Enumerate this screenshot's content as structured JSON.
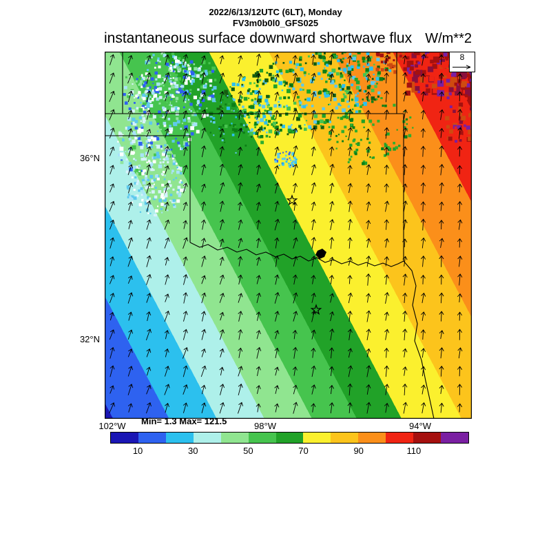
{
  "header": {
    "run_line": "2022/6/13/12UTC (6LT), Monday",
    "model_line": "FV3m0b0l0_GFS025",
    "title": "instantaneous surface downward shortwave flux",
    "units": "W/m**2"
  },
  "axes": {
    "lat_labels": [
      {
        "text": "36°N"
      },
      {
        "text": "32°N"
      }
    ],
    "lon_labels": [
      {
        "text": "102°W"
      },
      {
        "text": "98°W"
      },
      {
        "text": "94°W"
      }
    ]
  },
  "stats": {
    "min_max_label": "Min= 1.3 Max= 121.5"
  },
  "reference_vector": {
    "value": "8"
  },
  "colorbar": {
    "tick_labels": [
      "10",
      "30",
      "50",
      "70",
      "90",
      "110"
    ],
    "colors": [
      "#1a16b4",
      "#2e62f0",
      "#2cc0ee",
      "#aef0ea",
      "#90e590",
      "#46c44e",
      "#21a228",
      "#fbf02e",
      "#fcc41c",
      "#fb8f1a",
      "#f02413",
      "#a5100f",
      "#7a1fa2"
    ]
  },
  "chart_data": {
    "type": "heatmap",
    "title": "instantaneous surface downward shortwave flux",
    "units": "W/m**2",
    "valid_time": "2022/6/13/12UTC (6LT), Monday",
    "model": "FV3m0b0l0_GFS025",
    "min": 1.3,
    "max": 121.5,
    "contour_levels": [
      10,
      20,
      30,
      40,
      50,
      60,
      70,
      80,
      90,
      100,
      110,
      120
    ],
    "labeled_levels": [
      10,
      30,
      50,
      70,
      90,
      110
    ],
    "palette": [
      "#1a16b4",
      "#2e62f0",
      "#2cc0ee",
      "#aef0ea",
      "#90e590",
      "#46c44e",
      "#21a228",
      "#fbf02e",
      "#fcc41c",
      "#fb8f1a",
      "#f02413",
      "#a5100f",
      "#7a1fa2"
    ],
    "lat_tick_labels": [
      "36°N",
      "32°N"
    ],
    "lon_tick_labels": [
      "102°W",
      "98°W",
      "94°W"
    ],
    "wind_reference": 8,
    "pattern_summary": "Downward shortwave flux increases from below 10 W/m**2 in the southwest (dark blue) to above 110 W/m**2 in the northeast (red/purple), in NW-SE oriented bands; speckled green/cyan cloud-reduced patches across the northern half; wind vectors point generally north to north-northeast; Texas-Oklahoma state borders, the Red River, a lake and two star city markers are overlaid."
  }
}
